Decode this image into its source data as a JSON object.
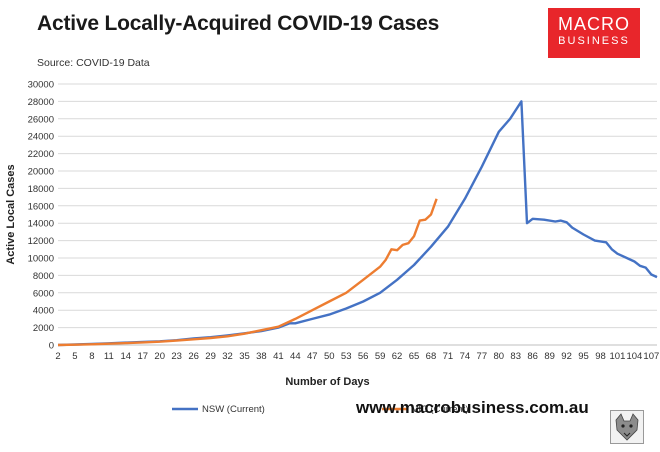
{
  "header": {
    "title": "Active Locally-Acquired COVID-19 Cases",
    "source": "Source: COVID-19 Data"
  },
  "logo": {
    "line1": "MACRO",
    "line2": "BUSINESS"
  },
  "footer": {
    "website": "www.macrobusiness.com.au"
  },
  "colors": {
    "nsw": "#4472c4",
    "vic": "#ed7d31"
  },
  "chart_data": {
    "type": "line",
    "title": "Active Locally-Acquired COVID-19 Cases",
    "xlabel": "Number of Days",
    "ylabel": "Active Local Cases",
    "ylim": [
      0,
      30000
    ],
    "yticks": [
      0,
      2000,
      4000,
      6000,
      8000,
      10000,
      12000,
      14000,
      16000,
      18000,
      20000,
      22000,
      24000,
      26000,
      28000,
      30000
    ],
    "xticks": [
      "2",
      "5",
      "8",
      "11",
      "14",
      "17",
      "20",
      "23",
      "26",
      "29",
      "32",
      "35",
      "38",
      "41",
      "44",
      "47",
      "50",
      "53",
      "56",
      "59",
      "62",
      "65",
      "68",
      "71",
      "74",
      "77",
      "80",
      "83",
      "86",
      "89",
      "92",
      "95",
      "98",
      "101",
      "104",
      "107"
    ],
    "xlim": [
      2,
      108
    ],
    "legend_position": "bottom",
    "grid": "horizontal",
    "series": [
      {
        "name": "NSW (Current)",
        "x": [
          2,
          5,
          8,
          11,
          14,
          17,
          20,
          23,
          26,
          29,
          32,
          35,
          38,
          41,
          43,
          44,
          47,
          50,
          53,
          56,
          59,
          62,
          65,
          68,
          71,
          74,
          77,
          80,
          82,
          84,
          85,
          86,
          88,
          90,
          91,
          92,
          93,
          95,
          97,
          99,
          100,
          101,
          103,
          104,
          105,
          106,
          107,
          108
        ],
        "values": [
          0,
          60,
          120,
          200,
          280,
          350,
          430,
          550,
          750,
          900,
          1100,
          1350,
          1600,
          2000,
          2500,
          2500,
          3000,
          3500,
          4200,
          5000,
          6000,
          7500,
          9200,
          11300,
          13600,
          16800,
          20500,
          24500,
          26000,
          28000,
          14000,
          14500,
          14400,
          14200,
          14300,
          14100,
          13500,
          12700,
          12000,
          11800,
          11000,
          10500,
          9900,
          9600,
          9100,
          8900,
          8100,
          7800
        ]
      },
      {
        "name": "VIC (Current)",
        "x": [
          2,
          5,
          8,
          11,
          14,
          17,
          20,
          23,
          26,
          29,
          32,
          35,
          38,
          41,
          44,
          47,
          50,
          53,
          56,
          59,
          60,
          61,
          62,
          63,
          64,
          65,
          66,
          67,
          68,
          69
        ],
        "values": [
          0,
          40,
          80,
          150,
          220,
          300,
          380,
          500,
          650,
          800,
          1000,
          1300,
          1700,
          2100,
          3000,
          4000,
          5000,
          6000,
          7500,
          9000,
          9800,
          11000,
          10900,
          11500,
          11700,
          12500,
          14300,
          14400,
          15000,
          16800
        ]
      }
    ]
  }
}
